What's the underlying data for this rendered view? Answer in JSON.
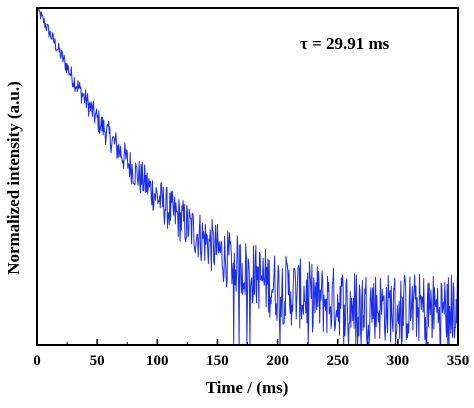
{
  "chart_data": {
    "type": "line",
    "title": "",
    "xlabel": "Time / (ms)",
    "ylabel": "Normalized intensity (a.u.)",
    "xlim": [
      0,
      350
    ],
    "ylim": [
      0,
      1
    ],
    "x_ticks": [
      0,
      50,
      100,
      150,
      200,
      250,
      300,
      350
    ],
    "x_tick_labels": [
      "0",
      "50",
      "100",
      "150",
      "200",
      "250",
      "300",
      "350"
    ],
    "y_tick_labels_shown": false,
    "grid": false,
    "legend": "none",
    "annotation": "τ  = 29.91 ms",
    "line_color": "#1a2cf0",
    "series": [
      {
        "x": [
          0,
          10,
          20,
          30,
          40,
          50,
          60,
          70,
          80,
          90,
          100,
          110,
          120,
          130,
          140,
          150,
          160,
          170,
          180,
          190,
          200,
          210,
          220,
          230,
          240,
          250,
          260,
          270,
          280,
          290,
          300,
          310,
          320,
          330,
          340,
          350
        ],
        "values": [
          1.0,
          0.93,
          0.86,
          0.79,
          0.73,
          0.67,
          0.62,
          0.57,
          0.52,
          0.48,
          0.44,
          0.4,
          0.37,
          0.34,
          0.31,
          0.28,
          0.25,
          0.23,
          0.21,
          0.19,
          0.17,
          0.16,
          0.15,
          0.14,
          0.13,
          0.13,
          0.12,
          0.12,
          0.12,
          0.11,
          0.11,
          0.11,
          0.11,
          0.11,
          0.11,
          0.11
        ]
      }
    ]
  }
}
